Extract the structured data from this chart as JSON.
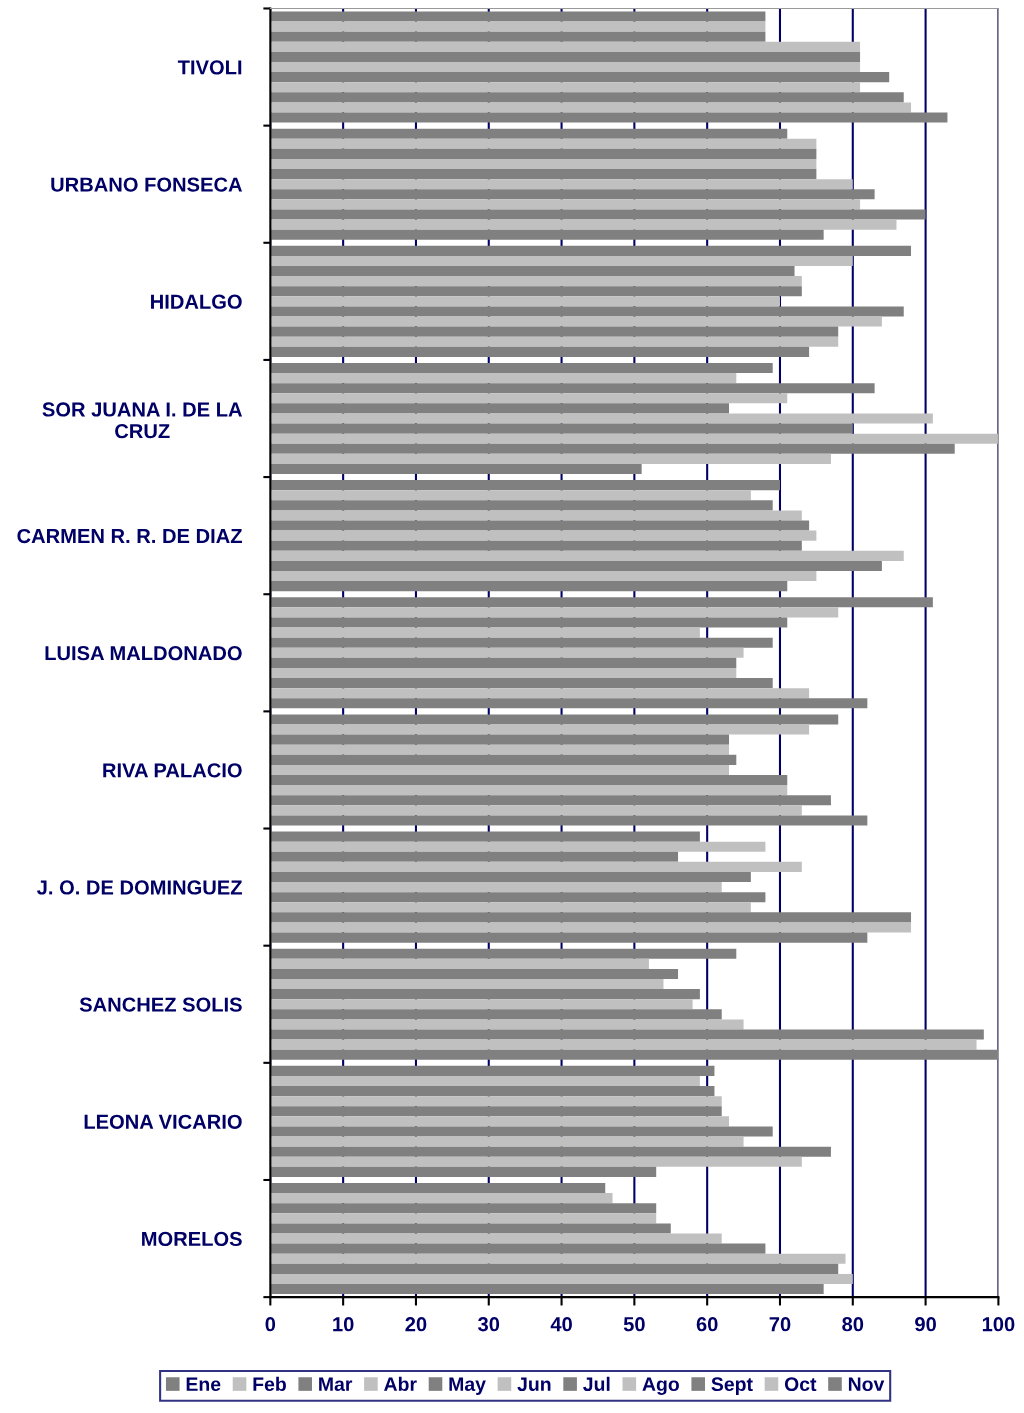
{
  "chart_data": {
    "type": "bar",
    "orientation": "horizontal",
    "categories": [
      "TIVOLI",
      "URBANO FONSECA",
      "HIDALGO",
      "SOR JUANA I. DE LA\nCRUZ",
      "CARMEN R. R. DE DIAZ",
      "LUISA MALDONADO",
      "RIVA PALACIO",
      "J. O. DE DOMINGUEZ",
      "SANCHEZ SOLIS",
      "LEONA VICARIO",
      "MORELOS"
    ],
    "series": [
      {
        "name": "Ene",
        "color": "#808080",
        "values": [
          68,
          71,
          88,
          69,
          70,
          91,
          78,
          59,
          64,
          61,
          46
        ]
      },
      {
        "name": "Feb",
        "color": "#c0c0c0",
        "values": [
          68,
          75,
          80,
          64,
          66,
          78,
          74,
          68,
          52,
          59,
          47
        ]
      },
      {
        "name": "Mar",
        "color": "#808080",
        "values": [
          68,
          75,
          72,
          83,
          69,
          71,
          63,
          56,
          56,
          61,
          53
        ]
      },
      {
        "name": "Abr",
        "color": "#c0c0c0",
        "values": [
          81,
          75,
          73,
          71,
          73,
          59,
          63,
          73,
          54,
          62,
          53
        ]
      },
      {
        "name": "May",
        "color": "#808080",
        "values": [
          81,
          75,
          73,
          63,
          74,
          69,
          64,
          66,
          59,
          62,
          55
        ]
      },
      {
        "name": "Jun",
        "color": "#c0c0c0",
        "values": [
          81,
          80,
          70,
          91,
          75,
          65,
          63,
          62,
          58,
          63,
          62
        ]
      },
      {
        "name": "Jul",
        "color": "#808080",
        "values": [
          85,
          83,
          87,
          80,
          73,
          64,
          71,
          68,
          62,
          69,
          68
        ]
      },
      {
        "name": "Ago",
        "color": "#c0c0c0",
        "values": [
          81,
          81,
          84,
          100,
          87,
          64,
          71,
          66,
          65,
          65,
          79
        ]
      },
      {
        "name": "Sept",
        "color": "#808080",
        "values": [
          87,
          90,
          78,
          94,
          84,
          69,
          77,
          88,
          98,
          77,
          78
        ]
      },
      {
        "name": "Oct",
        "color": "#c0c0c0",
        "values": [
          88,
          86,
          78,
          77,
          75,
          74,
          73,
          88,
          97,
          73,
          80
        ]
      },
      {
        "name": "Nov",
        "color": "#808080",
        "values": [
          93,
          76,
          74,
          51,
          71,
          82,
          82,
          82,
          100,
          53,
          76
        ]
      }
    ],
    "xlim": [
      0,
      100
    ],
    "xticks": [
      0,
      10,
      20,
      30,
      40,
      50,
      60,
      70,
      80,
      90,
      100
    ],
    "grid": "x",
    "legend": "bottom"
  }
}
